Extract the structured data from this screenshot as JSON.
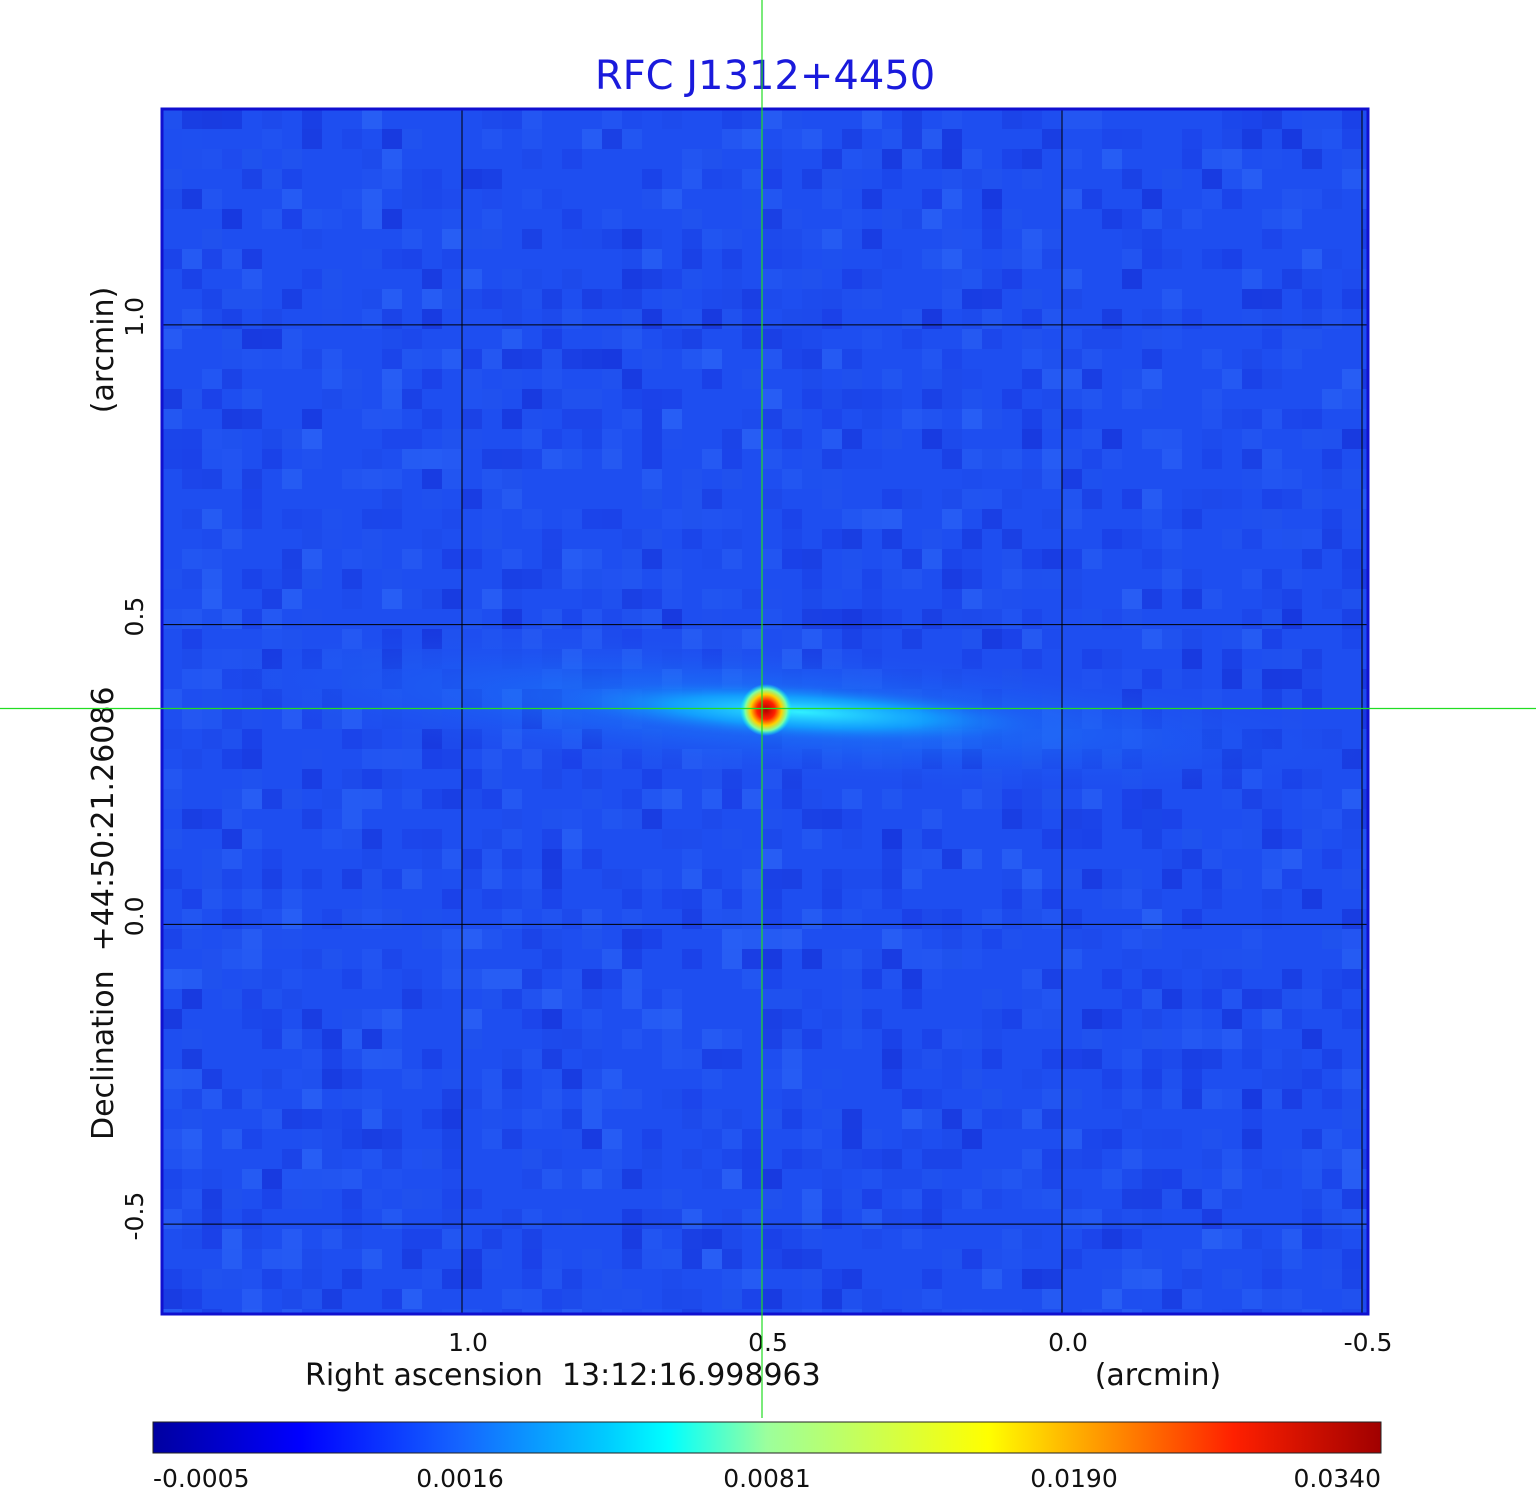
{
  "chart_data": {
    "type": "heatmap",
    "title": "RFC J1312+4450",
    "xlabel": "Right ascension  13:12:16.998963",
    "xunit": "(arcmin)",
    "ylabel": "Declination  +44:50:21.26086",
    "yunit": "(arcmin)",
    "x_ticks": [
      {
        "value": 1.0,
        "label": "1.0"
      },
      {
        "value": 0.5,
        "label": "0.5"
      },
      {
        "value": 0.0,
        "label": "0.0"
      },
      {
        "value": -0.5,
        "label": "-0.5"
      }
    ],
    "y_ticks": [
      {
        "value": 1.0,
        "label": "1.0"
      },
      {
        "value": 0.5,
        "label": "0.5"
      },
      {
        "value": 0.0,
        "label": "0.0"
      },
      {
        "value": -0.5,
        "label": "-0.5"
      }
    ],
    "x_range": [
      1.5,
      -0.51
    ],
    "y_range": [
      -0.65,
      1.36
    ],
    "grid": true,
    "crosshair": {
      "x": 0.5,
      "y": 0.36
    },
    "source": {
      "x": 0.5,
      "y": 0.36,
      "peak": 0.034
    },
    "colorbar": {
      "ticks": [
        "-0.0005",
        "0.0016",
        "0.0081",
        "0.0190",
        "0.0340"
      ],
      "colormap": [
        "#00008f",
        "#0000ff",
        "#00ffff",
        "#ffff00",
        "#ff0000",
        "#800000"
      ]
    },
    "colors": {
      "title": "#1a1adc",
      "frame": "#1010d0",
      "background_map": "#1e4ef0",
      "grid": "#000000",
      "crosshair": "#22dd22"
    }
  }
}
